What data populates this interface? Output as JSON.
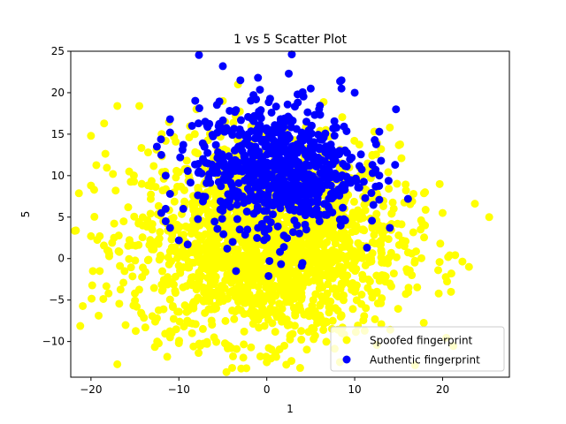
{
  "chart_data": {
    "type": "scatter",
    "title": "1 vs 5 Scatter Plot",
    "xlabel": "1",
    "ylabel": "5",
    "xlim": [
      -22.3,
      27.6
    ],
    "ylim": [
      -14.3,
      25
    ],
    "xticks": [
      -20,
      -10,
      0,
      10,
      20
    ],
    "yticks": [
      -10,
      -5,
      0,
      5,
      10,
      15,
      20,
      25
    ],
    "grid": false,
    "legend_position": "lower-right",
    "series": [
      {
        "name": "Spoofed fingerprint",
        "color": "#ffff00",
        "distribution": {
          "count": 2000,
          "mean_x": 0,
          "mean_y": 2,
          "std_x": 7.5,
          "std_y": 5.8
        },
        "points": [
          [
            -20,
            14.8
          ],
          [
            -20,
            8.8
          ],
          [
            -17,
            18.4
          ],
          [
            -14.5,
            18.4
          ],
          [
            -18.5,
            16.3
          ],
          [
            -17.5,
            10.2
          ],
          [
            -19,
            2.7
          ],
          [
            -18,
            0.9
          ],
          [
            -19,
            -1.5
          ],
          [
            -18,
            -4.2
          ],
          [
            -15,
            -4.2
          ],
          [
            -14.8,
            -5.8
          ],
          [
            -12.5,
            -7.2
          ],
          [
            -11,
            -9.5
          ],
          [
            -10,
            -10.2
          ],
          [
            -8.5,
            -9
          ],
          [
            -6,
            -9.5
          ],
          [
            -4,
            -10.8
          ],
          [
            0,
            -12.5
          ],
          [
            2,
            -10.5
          ],
          [
            5.5,
            -9.3
          ],
          [
            7.5,
            -7.5
          ],
          [
            10,
            -4
          ],
          [
            12,
            -4.7
          ],
          [
            14,
            -3
          ],
          [
            16.5,
            -2
          ],
          [
            17.5,
            3.5
          ],
          [
            18,
            8
          ],
          [
            19.5,
            -1.4
          ],
          [
            21,
            -1.8
          ],
          [
            23,
            -1
          ],
          [
            25.3,
            5
          ],
          [
            20,
            5.5
          ],
          [
            18,
            4
          ],
          [
            16.5,
            0.6
          ],
          [
            15,
            2.8
          ],
          [
            -5,
            19
          ],
          [
            -8,
            18
          ],
          [
            -11.5,
            14.2
          ],
          [
            -13.5,
            12.8
          ],
          [
            14,
            15.8
          ],
          [
            12,
            12.5
          ],
          [
            13,
            13.2
          ],
          [
            -20,
            2.7
          ]
        ]
      },
      {
        "name": "Authentic fingerprint",
        "color": "#0000ff",
        "distribution": {
          "count": 700,
          "mean_x": 1.2,
          "mean_y": 11,
          "std_x": 4.5,
          "std_y": 3.8
        },
        "points": [
          [
            -5,
            23.2
          ],
          [
            2.5,
            22.3
          ],
          [
            -3,
            21.5
          ],
          [
            -1,
            21.8
          ],
          [
            8.5,
            21.5
          ],
          [
            8.5,
            20.5
          ],
          [
            10,
            20
          ],
          [
            5,
            20.5
          ],
          [
            3.5,
            19.8
          ],
          [
            14.7,
            18
          ],
          [
            -11,
            16.8
          ],
          [
            -11,
            15.2
          ],
          [
            -12.5,
            13.5
          ],
          [
            -12,
            12.5
          ],
          [
            -11.5,
            10
          ],
          [
            -11,
            7.8
          ],
          [
            -11.5,
            6
          ],
          [
            -12,
            5.5
          ],
          [
            -11.5,
            4.5
          ],
          [
            -9.5,
            6
          ],
          [
            -11,
            3.7
          ],
          [
            -10,
            2.2
          ],
          [
            -9,
            1.7
          ],
          [
            -4.5,
            1.2
          ],
          [
            -1,
            3.7
          ],
          [
            0,
            2.5
          ],
          [
            1.5,
            0.8
          ],
          [
            -3.5,
            -1.5
          ],
          [
            0.2,
            -2.1
          ],
          [
            14,
            3.7
          ],
          [
            12.8,
            15.3
          ],
          [
            13,
            11.8
          ],
          [
            14.6,
            11.3
          ],
          [
            12.8,
            7.1
          ],
          [
            11.2,
            7.3
          ],
          [
            10.2,
            9.3
          ],
          [
            3,
            3.2
          ],
          [
            4.5,
            3.5
          ],
          [
            6,
            4.5
          ],
          [
            -8.5,
            16
          ],
          [
            -7,
            16.5
          ]
        ]
      }
    ]
  }
}
